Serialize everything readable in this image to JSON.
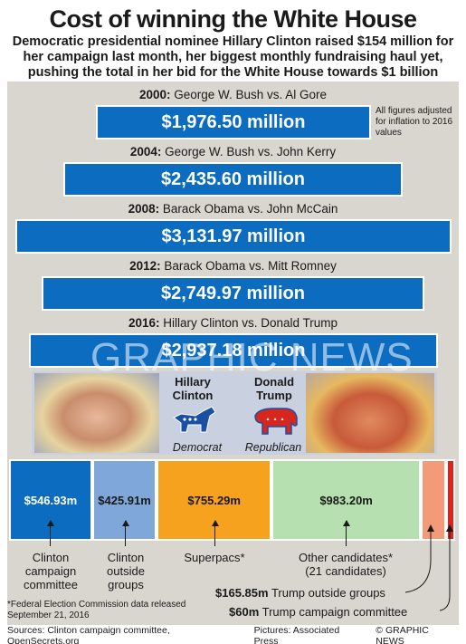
{
  "title": "Cost of winning the White House",
  "subtitle": "Democratic presidential nominee Hillary Clinton raised $154 million for her campaign last month, her biggest monthly fundraising haul yet, pushing the total in her bid for the White House towards $1 billion",
  "note": "All figures adjusted for inflation to 2016 values",
  "chart_data": [
    {
      "type": "bar",
      "orientation": "horizontal-centered",
      "categories": [
        "2000",
        "2004",
        "2008",
        "2012",
        "2016"
      ],
      "matchups": [
        "George W. Bush vs. Al Gore",
        "George W. Bush vs. John Kerry",
        "Barack Obama vs. John McCain",
        "Barack Obama vs. Mitt Romney",
        "Hillary Clinton vs. Donald Trump"
      ],
      "values": [
        1976.5,
        2435.6,
        3131.97,
        2749.97,
        2937.18
      ],
      "value_labels": [
        "$1,976.50 million",
        "$2,435.60 million",
        "$3,131.97 million",
        "$2,749.97 million",
        "$2,937.18 million"
      ],
      "color": "#0b6cc0"
    },
    {
      "type": "bar",
      "orientation": "stacked-horizontal",
      "segments": [
        {
          "name": "Clinton campaign committee",
          "value": 546.93,
          "label": "$546.93m",
          "color": "#0b6cc0"
        },
        {
          "name": "Clinton outside groups",
          "value": 425.91,
          "label": "$425.91m",
          "color": "#7fa7d9"
        },
        {
          "name": "Superpacs*",
          "value": 755.29,
          "label": "$755.29m",
          "color": "#f6a21e"
        },
        {
          "name": "Other candidates* (21 candidates)",
          "value": 983.2,
          "label": "$983.20m",
          "color": "#b7e0b0"
        },
        {
          "name": "Trump outside groups",
          "value": 165.85,
          "label": "$165.85m",
          "color": "#f39a78"
        },
        {
          "name": "Trump campaign committee",
          "value": 60,
          "label": "$60m",
          "color": "#e32119"
        }
      ]
    }
  ],
  "candidates": {
    "clinton": {
      "name_line1": "Hillary",
      "name_line2": "Clinton",
      "party": "Democrat",
      "party_color": "#1b4fa3"
    },
    "trump": {
      "name_line1": "Donald",
      "name_line2": "Trump",
      "party": "Republican",
      "party_color": "#d6271f"
    }
  },
  "seg_labels": {
    "clinton_committee": [
      "Clinton",
      "campaign",
      "committee"
    ],
    "clinton_outside": [
      "Clinton",
      "outside",
      "groups"
    ],
    "superpacs": "Superpacs*",
    "other": [
      "Other candidates*",
      "(21 candidates)"
    ],
    "trump_outside_value": "$165.85m",
    "trump_outside_text": "Trump outside groups",
    "trump_committee_value": "$60m",
    "trump_committee_text": "Trump campaign committee"
  },
  "footnote": "*Federal Election Commission data released September 21, 2016",
  "footer": {
    "sources": "Sources: Clinton campaign committee, OpenSecrets.org",
    "pictures": "Pictures: Associated Press",
    "credit": "© GRAPHIC NEWS"
  },
  "watermark": "GRAPHIC NEWS"
}
